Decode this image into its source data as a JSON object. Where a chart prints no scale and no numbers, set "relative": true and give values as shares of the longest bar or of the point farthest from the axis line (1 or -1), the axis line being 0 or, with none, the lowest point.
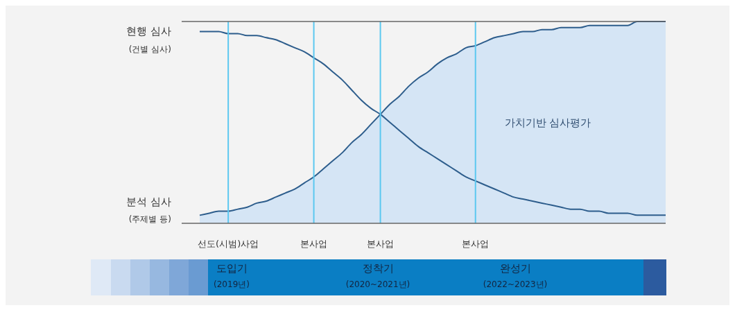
{
  "chart_data": {
    "type": "line",
    "relative": true,
    "grid": "x",
    "categories": [
      null,
      null,
      null,
      "선도(시범)사업",
      null,
      null,
      null,
      null,
      null,
      null,
      null,
      null,
      "본사업",
      null,
      null,
      null,
      null,
      null,
      null,
      "본사업",
      null,
      null,
      null,
      null,
      null,
      null,
      null,
      null,
      null,
      "본사업",
      null,
      null,
      null,
      null,
      null,
      null,
      null,
      null,
      null,
      null,
      null,
      null,
      null,
      null,
      null,
      null,
      null,
      null,
      null,
      null
    ],
    "series": [
      {
        "name": "가치기반 심사평가",
        "type": "area",
        "color": "#d5e5f5",
        "values": [
          0.04,
          0.05,
          0.06,
          0.06,
          0.07,
          0.08,
          0.1,
          0.11,
          0.13,
          0.15,
          0.17,
          0.2,
          0.23,
          0.27,
          0.31,
          0.35,
          0.4,
          0.44,
          0.49,
          0.54,
          0.59,
          0.63,
          0.68,
          0.72,
          0.75,
          0.79,
          0.82,
          0.84,
          0.87,
          0.88,
          0.9,
          0.92,
          0.93,
          0.94,
          0.95,
          0.95,
          0.96,
          0.96,
          0.97,
          0.97,
          0.97,
          0.98,
          0.98,
          0.98,
          0.98,
          0.98,
          1,
          1,
          1,
          1
        ]
      },
      {
        "type": "line",
        "color": "#2d5d8c",
        "values": [
          0.95,
          0.95,
          0.95,
          0.94,
          0.94,
          0.93,
          0.93,
          0.92,
          0.91,
          0.89,
          0.87,
          0.85,
          0.82,
          0.79,
          0.75,
          0.71,
          0.66,
          0.61,
          0.57,
          0.54,
          0.5,
          0.46,
          0.42,
          0.38,
          0.35,
          0.32,
          0.29,
          0.26,
          0.23,
          0.21,
          0.19,
          0.17,
          0.15,
          0.13,
          0.12,
          0.11,
          0.1,
          0.09,
          0.08,
          0.07,
          0.07,
          0.06,
          0.06,
          0.05,
          0.05,
          0.05,
          0.04,
          0.04,
          0.04,
          0.04
        ]
      }
    ],
    "annotations": [
      "현행 심사",
      "(건별 심사)",
      "분석 심사",
      "(주제별 등)",
      "도입기",
      "(2019년)",
      "정착기",
      "(2020~2021년)",
      "완성기",
      "(2022~2023년)"
    ]
  }
}
